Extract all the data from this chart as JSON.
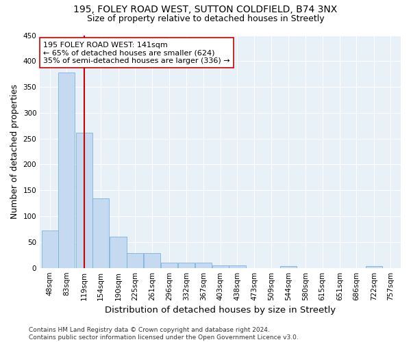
{
  "title_line1": "195, FOLEY ROAD WEST, SUTTON COLDFIELD, B74 3NX",
  "title_line2": "Size of property relative to detached houses in Streetly",
  "xlabel": "Distribution of detached houses by size in Streetly",
  "ylabel": "Number of detached properties",
  "bar_color": "#c5d9f0",
  "bar_edge_color": "#6aaad4",
  "background_color": "#e8f0f8",
  "annotation_line1": "195 FOLEY ROAD WEST: 141sqm",
  "annotation_line2": "← 65% of detached houses are smaller (624)",
  "annotation_line3": "35% of semi-detached houses are larger (336) →",
  "vline_color": "#cc0000",
  "bin_centers": [
    48,
    83,
    119,
    154,
    190,
    225,
    261,
    296,
    332,
    367,
    403,
    438,
    473,
    509,
    544,
    580,
    615,
    651,
    686,
    722,
    757
  ],
  "bin_labels": [
    "48sqm",
    "83sqm",
    "119sqm",
    "154sqm",
    "190sqm",
    "225sqm",
    "261sqm",
    "296sqm",
    "332sqm",
    "367sqm",
    "403sqm",
    "438sqm",
    "473sqm",
    "509sqm",
    "544sqm",
    "580sqm",
    "615sqm",
    "651sqm",
    "686sqm",
    "722sqm",
    "757sqm"
  ],
  "bar_heights": [
    72,
    378,
    262,
    135,
    60,
    29,
    29,
    10,
    10,
    10,
    5,
    5,
    0,
    0,
    4,
    0,
    0,
    0,
    0,
    4
  ],
  "ylim": [
    0,
    450
  ],
  "yticks": [
    0,
    50,
    100,
    150,
    200,
    250,
    300,
    350,
    400,
    450
  ],
  "footer_text": "Contains HM Land Registry data © Crown copyright and database right 2024.\nContains public sector information licensed under the Open Government Licence v3.0.",
  "title_fontsize": 10,
  "subtitle_fontsize": 9,
  "axis_label_fontsize": 9,
  "tick_fontsize": 7.5,
  "annotation_fontsize": 8,
  "footer_fontsize": 6.5
}
